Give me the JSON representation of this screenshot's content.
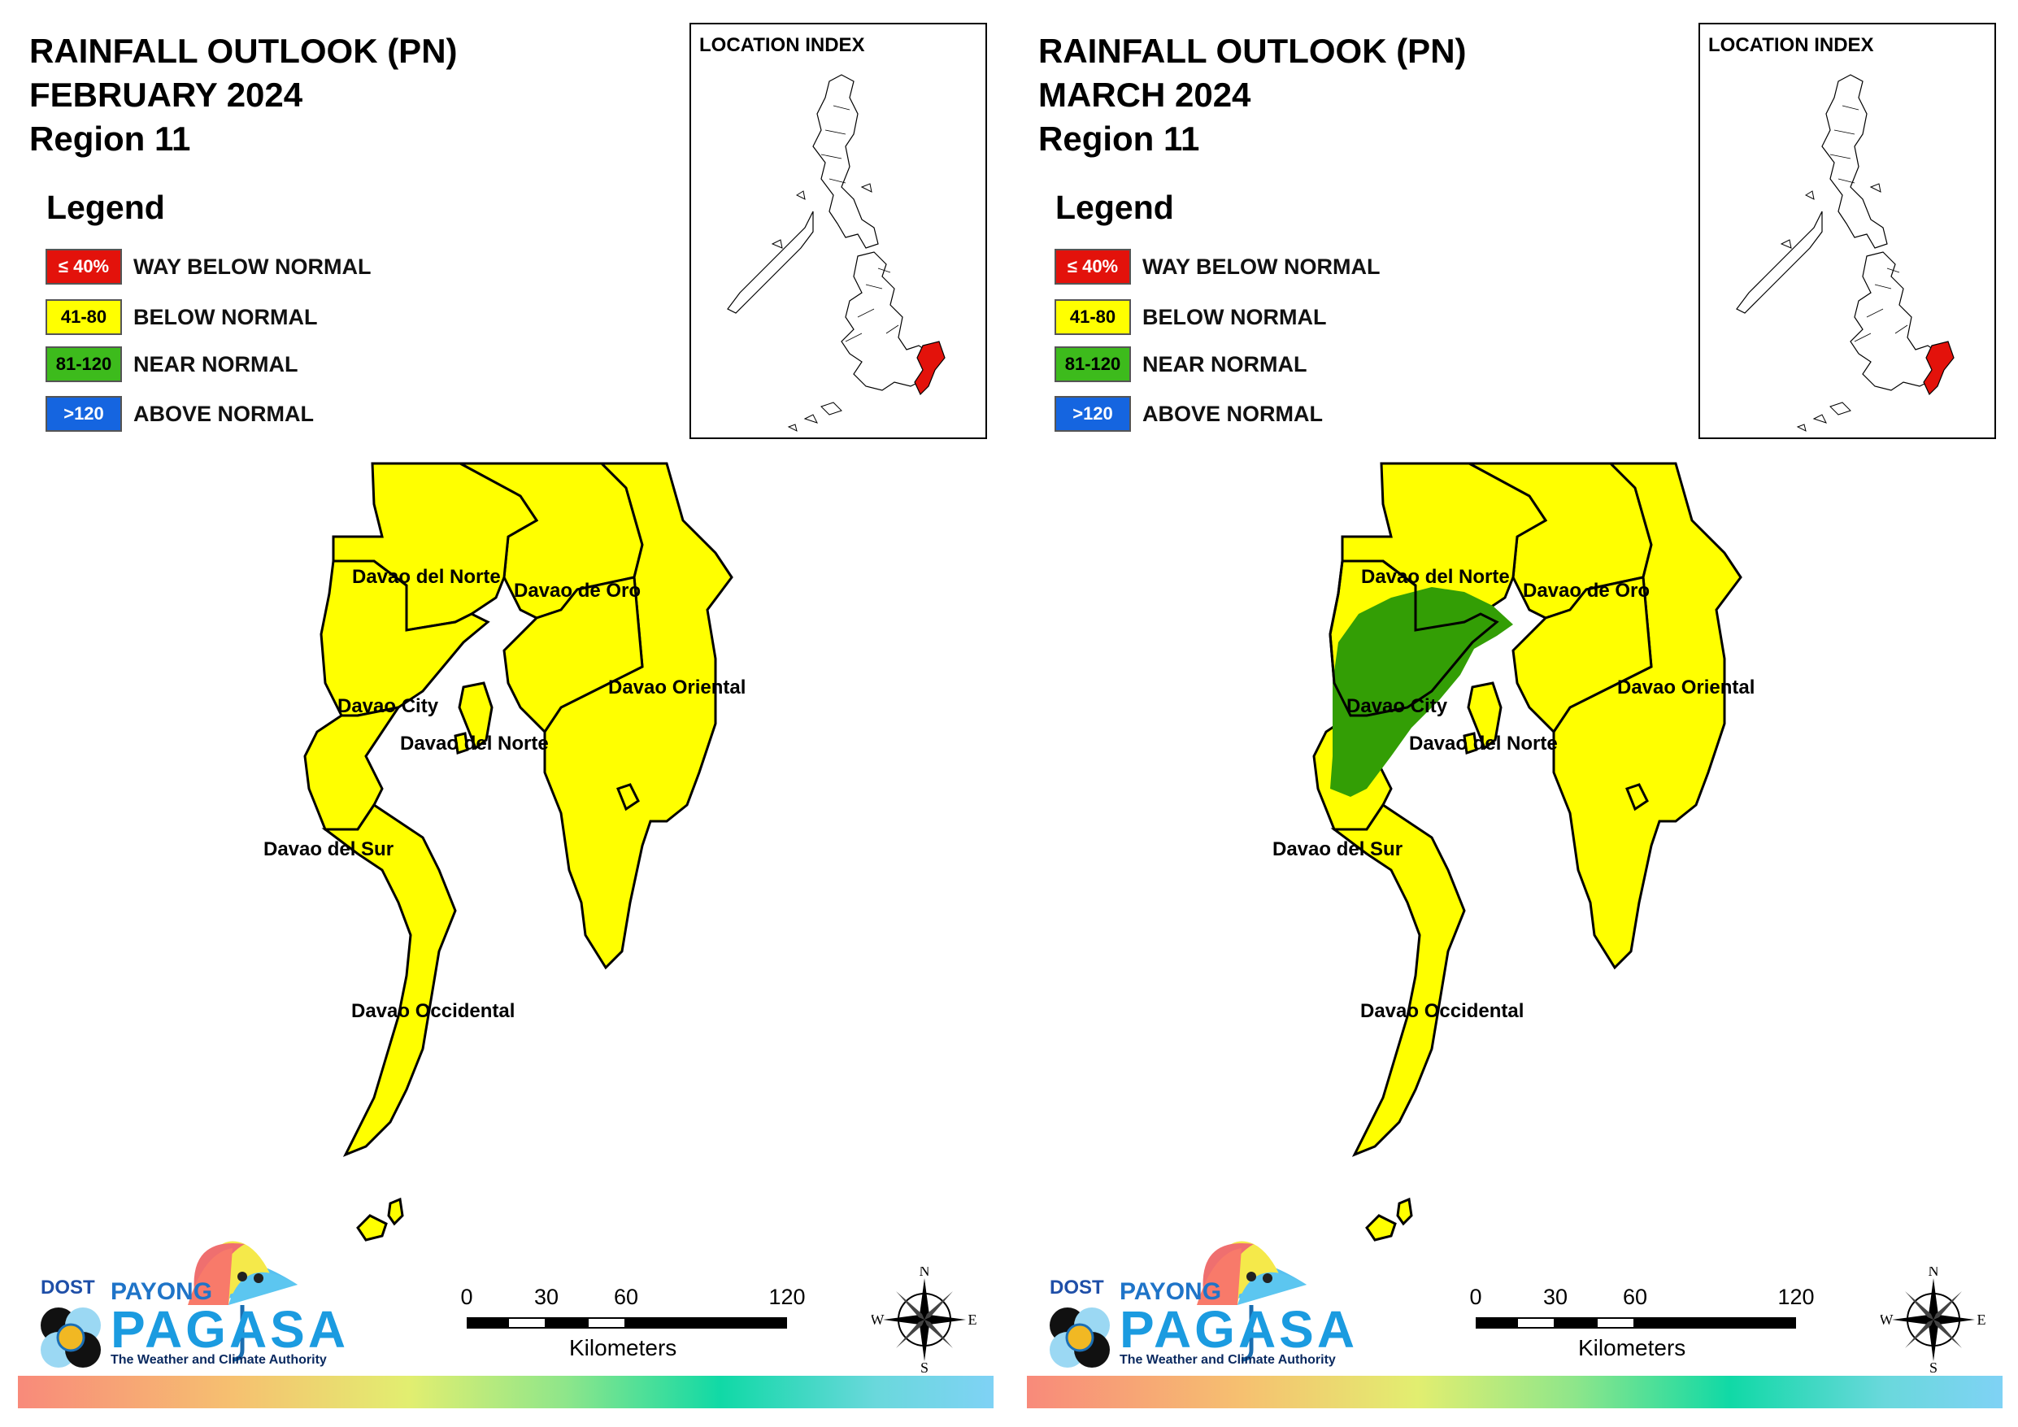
{
  "panels": [
    {
      "title_line1": "RAINFALL OUTLOOK (PN)",
      "title_line2": "FEBRUARY 2024",
      "title_line3": "Region 11",
      "near_normal_area": false
    },
    {
      "title_line1": "RAINFALL OUTLOOK (PN)",
      "title_line2": "MARCH 2024",
      "title_line3": "Region 11",
      "near_normal_area": true
    }
  ],
  "legend": {
    "title": "Legend",
    "items": [
      {
        "range": "≤ 40%",
        "label": "WAY BELOW NORMAL",
        "color": "#e3120b",
        "text_color": "#ffffff"
      },
      {
        "range": "41-80",
        "label": "BELOW NORMAL",
        "color": "#ffff00",
        "text_color": "#000000"
      },
      {
        "range": "81-120",
        "label": "NEAR NORMAL",
        "color": "#3dbb1c",
        "text_color": "#000000"
      },
      {
        "range": ">120",
        "label": "ABOVE NORMAL",
        "color": "#1565e0",
        "text_color": "#ffffff"
      }
    ]
  },
  "location_index": {
    "label": "LOCATION INDEX",
    "highlight_color": "#e3120b"
  },
  "provinces": {
    "davao_del_norte": "Davao del Norte",
    "davao_de_oro": "Davao de Oro",
    "davao_oriental": "Davao Oriental",
    "davao_city": "Davao City",
    "davao_del_norte_samal": "Davao del Norte",
    "davao_del_sur": "Davao del Sur",
    "davao_occidental": "Davao Occidental"
  },
  "map_colors": {
    "below_normal": "#ffff00",
    "near_normal": "#339e05",
    "border": "#000000"
  },
  "scale_bar": {
    "ticks": [
      "0",
      "30",
      "60",
      "120"
    ],
    "unit": "Kilometers"
  },
  "compass": {
    "n": "N",
    "e": "E",
    "s": "S",
    "w": "W"
  },
  "branding": {
    "dost": "DOST",
    "payong": "PAYONG",
    "pagasa": "PAGASA",
    "tagline": "The Weather and Climate Authority"
  }
}
